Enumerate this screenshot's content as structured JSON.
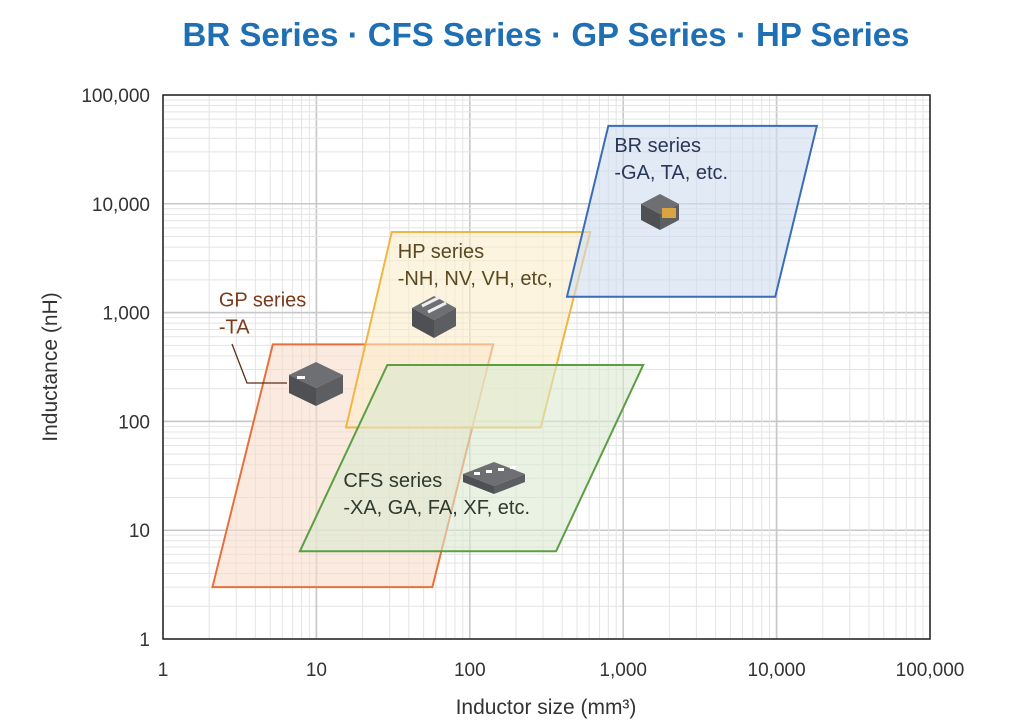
{
  "chart_data": {
    "type": "area",
    "title": "BR Series · CFS Series · GP Series · HP Series",
    "xlabel": "Inductor size (mm³)",
    "ylabel": "Inductance (nH)",
    "xscale": "log",
    "yscale": "log",
    "xlim": [
      1,
      100000
    ],
    "ylim": [
      1,
      100000
    ],
    "grid": true,
    "x_ticks": [
      "1",
      "10",
      "100",
      "1,000",
      "10,000",
      "100,000"
    ],
    "y_ticks": [
      "1",
      "10",
      "100",
      "1,000",
      "10,000",
      "100,000"
    ],
    "series": [
      {
        "name": "GP series",
        "label_lines": [
          "GP series",
          "-TA"
        ],
        "color": "#e8703a",
        "fill": "#f9dccc",
        "text_color": "#7a3a1c",
        "polygon": [
          [
            5.2,
            510
          ],
          [
            142,
            510
          ],
          [
            57,
            3.0
          ],
          [
            2.1,
            3.0
          ]
        ]
      },
      {
        "name": "HP series",
        "label_lines": [
          "HP series",
          "-NH, NV, VH, etc,"
        ],
        "color": "#f2b544",
        "fill": "#fcecc9",
        "text_color": "#5a4820",
        "polygon": [
          [
            31,
            5500
          ],
          [
            610,
            5500
          ],
          [
            290,
            88
          ],
          [
            15.6,
            88
          ]
        ]
      },
      {
        "name": "BR series",
        "label_lines": [
          "BR series",
          "-GA, TA, etc."
        ],
        "color": "#3a6cb8",
        "fill": "#cfdcef",
        "text_color": "#2a3658",
        "polygon": [
          [
            800,
            52000
          ],
          [
            18300,
            52000
          ],
          [
            9800,
            1400
          ],
          [
            430,
            1400
          ]
        ]
      },
      {
        "name": "CFS series",
        "label_lines": [
          "CFS series",
          "-XA, GA, FA, XF, etc."
        ],
        "color": "#5b9e44",
        "fill": "#dbead0",
        "text_color": "#2e3a2e",
        "polygon": [
          [
            29,
            330
          ],
          [
            1350,
            330
          ],
          [
            365,
            6.4
          ],
          [
            7.8,
            6.4
          ]
        ]
      }
    ]
  }
}
